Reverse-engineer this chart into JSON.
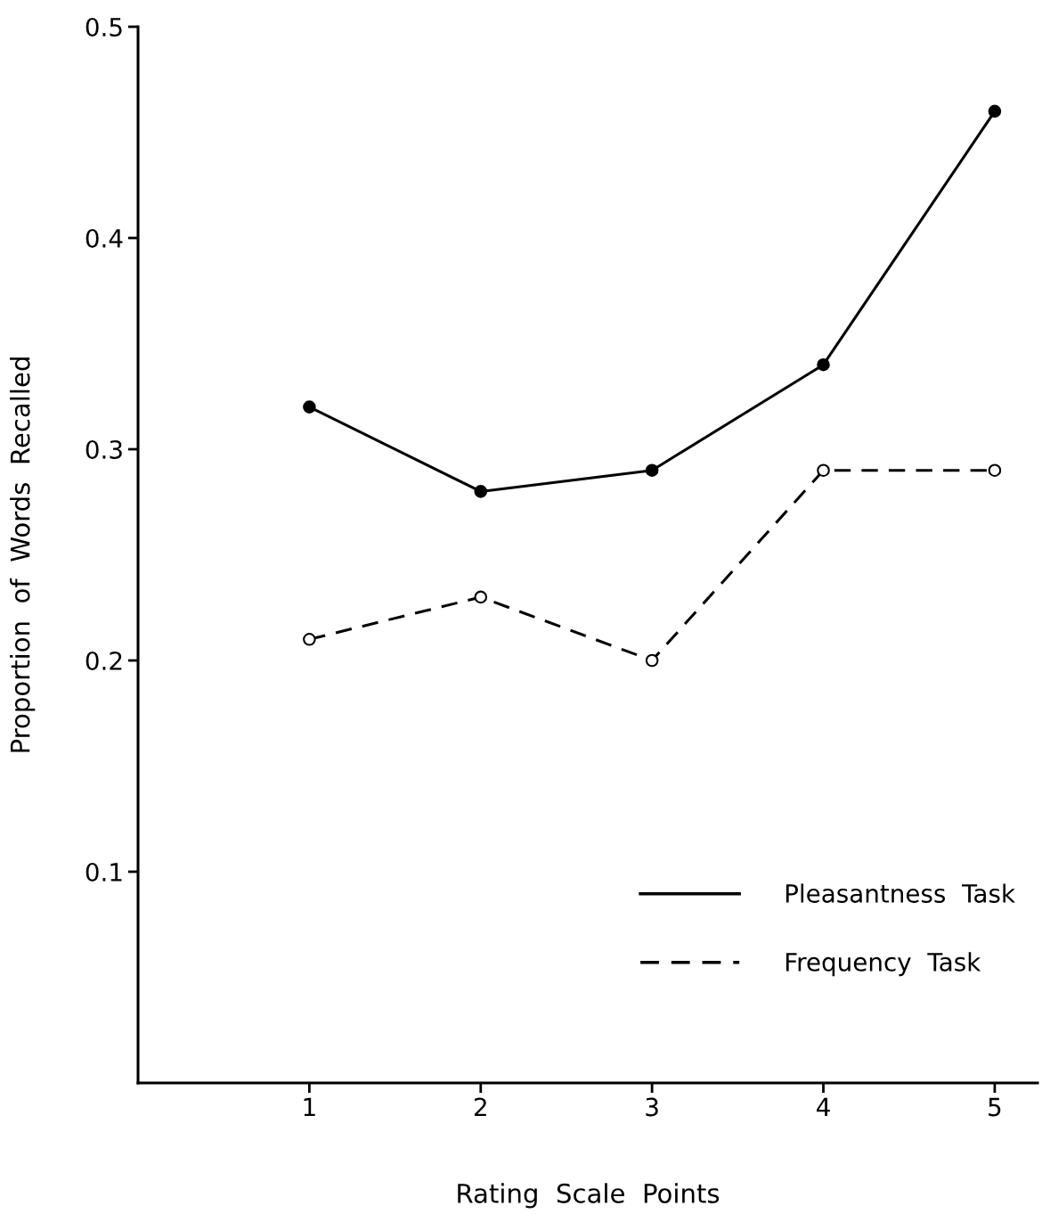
{
  "chart_data": {
    "type": "line",
    "xlabel": "Rating  Scale  Points",
    "ylabel": "Proportion  of  Words  Recalled",
    "x": [
      1,
      2,
      3,
      4,
      5
    ],
    "series": [
      {
        "name": "Pleasantness  Task",
        "color": "#000000",
        "values": [
          0.32,
          0.28,
          0.29,
          0.34,
          0.46
        ],
        "line_style": "solid"
      },
      {
        "name": "Frequency  Task",
        "color": "#000000",
        "values": [
          0.21,
          0.23,
          0.2,
          0.29,
          0.29
        ],
        "line_style": "dashed"
      }
    ],
    "marker": "circle",
    "xlim": [
      0,
      5.25
    ],
    "xticks": [
      1,
      2,
      3,
      4,
      5
    ],
    "ylim": [
      0,
      0.5
    ],
    "yticks": [
      0.1,
      0.2,
      0.3,
      0.4,
      0.5
    ],
    "grid": false,
    "legend": "bottom right"
  }
}
